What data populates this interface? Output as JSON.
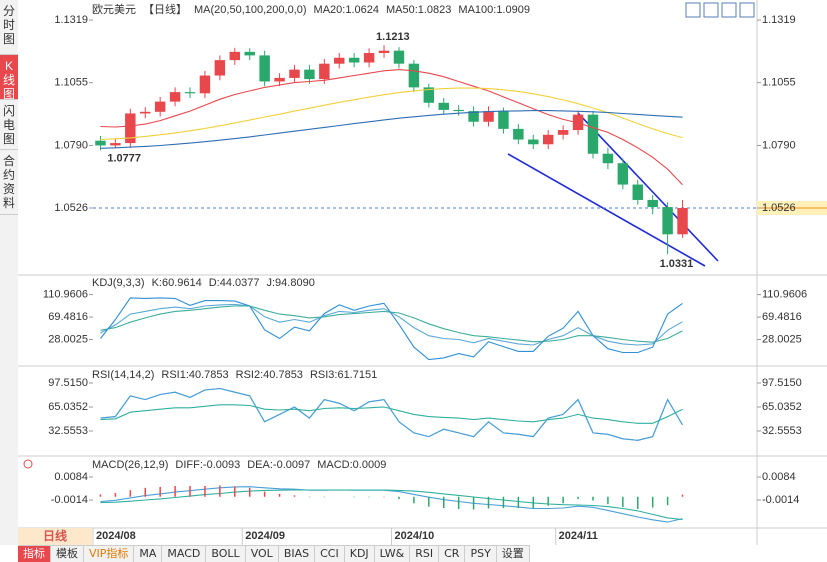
{
  "sidebar": [
    "分时图",
    "K线图",
    "闪电图",
    "合约资料"
  ],
  "period_label": "日线",
  "toolbar": [
    "指标",
    "模板",
    "VIP指标",
    "MA",
    "MACD",
    "BOLL",
    "VOL",
    "BIAS",
    "CCI",
    "KDJ",
    "LW&",
    "RSI",
    "CR",
    "PSY",
    "设置"
  ],
  "chart_data": [
    {
      "type": "candlestick",
      "title": "欧元美元",
      "period": "【日线】",
      "ma_label": "MA(20,50,100,200,0,0)",
      "categories": [
        "2024/08",
        null,
        null,
        null,
        null,
        null,
        null,
        null,
        null,
        null,
        "2024/09",
        null,
        null,
        null,
        null,
        null,
        null,
        null,
        null,
        null,
        "2024/10",
        null,
        null,
        null,
        null,
        null,
        null,
        null,
        null,
        null,
        null,
        "2024/11",
        null,
        null,
        null,
        null,
        null,
        null,
        null,
        null
      ],
      "open": [
        1.081,
        1.079,
        1.08,
        1.0925,
        1.0932,
        1.0975,
        1.1015,
        1.101,
        1.1085,
        1.115,
        1.1185,
        1.117,
        1.106,
        1.1075,
        1.111,
        1.107,
        1.1135,
        1.116,
        1.114,
        1.118,
        1.119,
        1.1135,
        1.1035,
        1.097,
        1.094,
        1.0935,
        1.089,
        1.0935,
        1.086,
        1.0815,
        1.0795,
        1.0835,
        1.0855,
        1.092,
        1.0755,
        1.0715,
        1.0625,
        1.056,
        1.053,
        1.0415
      ],
      "high": [
        1.083,
        1.082,
        1.0945,
        1.0952,
        1.0995,
        1.1035,
        1.1035,
        1.1105,
        1.117,
        1.1202,
        1.12,
        1.119,
        1.1095,
        1.113,
        1.113,
        1.1155,
        1.118,
        1.118,
        1.12,
        1.1213,
        1.1205,
        1.115,
        1.105,
        1.099,
        1.096,
        1.0955,
        1.0955,
        1.095,
        1.088,
        1.0835,
        1.0855,
        1.0875,
        1.0937,
        1.0935,
        1.078,
        1.0735,
        1.0645,
        1.058,
        1.055,
        1.056
      ],
      "low": [
        1.077,
        1.0777,
        1.078,
        1.0905,
        1.0912,
        1.0955,
        1.099,
        1.099,
        1.1065,
        1.113,
        1.115,
        1.104,
        1.104,
        1.1055,
        1.105,
        1.105,
        1.1115,
        1.112,
        1.112,
        1.116,
        1.1115,
        1.1015,
        1.095,
        1.092,
        1.0915,
        1.087,
        1.087,
        1.084,
        1.0795,
        1.0775,
        1.0775,
        1.0815,
        1.0835,
        1.0735,
        1.069,
        1.0605,
        1.054,
        1.05,
        1.0331,
        1.04
      ],
      "close": [
        1.079,
        1.08,
        1.0925,
        1.0932,
        1.0975,
        1.1015,
        1.101,
        1.1085,
        1.115,
        1.1185,
        1.117,
        1.106,
        1.1075,
        1.111,
        1.107,
        1.1135,
        1.116,
        1.114,
        1.118,
        1.119,
        1.1135,
        1.1035,
        1.097,
        1.094,
        1.0935,
        1.089,
        1.0935,
        1.086,
        1.0815,
        1.0795,
        1.0835,
        1.0855,
        1.092,
        1.0755,
        1.0715,
        1.0625,
        1.056,
        1.053,
        1.0415,
        1.0526
      ],
      "up_color": "#e8474c",
      "down_color": "#2aa86c",
      "series": [
        {
          "name": "MA20:1.0624",
          "color": "#e8474c",
          "values": [
            1.087,
            1.0868,
            1.0872,
            1.088,
            1.0895,
            1.0915,
            1.0935,
            1.096,
            1.0985,
            1.1005,
            1.102,
            1.1035,
            1.1045,
            1.1055,
            1.106,
            1.1065,
            1.1075,
            1.1085,
            1.1095,
            1.1105,
            1.111,
            1.1105,
            1.1095,
            1.108,
            1.106,
            1.104,
            1.102,
            1.0995,
            1.097,
            1.0945,
            1.092,
            1.09,
            1.0885,
            1.0865,
            1.0845,
            1.0815,
            1.078,
            1.074,
            1.069,
            1.0624
          ]
        },
        {
          "name": "MA50:1.0823",
          "color": "#f2d13a",
          "values": [
            1.0815,
            1.0818,
            1.0822,
            1.0828,
            1.0835,
            1.0843,
            1.0852,
            1.0862,
            1.0873,
            1.0885,
            1.0897,
            1.091,
            1.0922,
            1.0935,
            1.0947,
            1.096,
            1.0972,
            1.0983,
            1.0994,
            1.1004,
            1.1013,
            1.102,
            1.1026,
            1.103,
            1.1032,
            1.1032,
            1.103,
            1.1025,
            1.1018,
            1.1008,
            1.0996,
            1.0982,
            1.0966,
            1.0948,
            1.0928,
            1.0906,
            1.0882,
            1.086,
            1.084,
            1.0823
          ]
        },
        {
          "name": "MA100:1.0909",
          "color": "#2f6db5",
          "values": [
            1.0778,
            1.078,
            1.0783,
            1.0786,
            1.079,
            1.0795,
            1.08,
            1.0806,
            1.0812,
            1.0819,
            1.0826,
            1.0834,
            1.0842,
            1.085,
            1.0858,
            1.0866,
            1.0874,
            1.0882,
            1.089,
            1.0898,
            1.0905,
            1.0911,
            1.0917,
            1.0922,
            1.0926,
            1.093,
            1.0933,
            1.0935,
            1.0936,
            1.0937,
            1.0937,
            1.0936,
            1.0934,
            1.0932,
            1.0929,
            1.0925,
            1.0921,
            1.0917,
            1.0913,
            1.0909
          ]
        }
      ],
      "annotations": [
        {
          "index": 19,
          "value": 1.1213,
          "label": "1.1213",
          "color": "#e8474c"
        },
        {
          "index": 1,
          "value": 1.0777,
          "label": "1.0777",
          "color": "#2aa86c"
        },
        {
          "index": 38,
          "value": 1.0331,
          "label": "1.0331",
          "color": "#2aa86c"
        }
      ],
      "last_price": 1.0526,
      "ylim": [
        1.0256,
        1.137
      ],
      "yticks": [
        1.1319,
        1.1055,
        {
          "value": 1.079,
          "label": "1.0790"
        },
        1.0526
      ]
    },
    {
      "type": "line",
      "title": "KDJ(9,3,3)",
      "series": [
        {
          "name": "K:60.9614",
          "color": "#5aa9d6",
          "values": [
            40,
            55,
            75,
            80,
            85,
            88,
            85,
            90,
            92,
            93,
            90,
            70,
            60,
            65,
            60,
            72,
            80,
            78,
            82,
            85,
            70,
            50,
            35,
            30,
            28,
            22,
            30,
            25,
            20,
            18,
            28,
            35,
            50,
            35,
            25,
            20,
            18,
            20,
            45,
            60.9614
          ]
        },
        {
          "name": "D:44.0377",
          "color": "#3fae9c",
          "values": [
            45,
            50,
            60,
            68,
            75,
            80,
            82,
            85,
            88,
            90,
            90,
            82,
            75,
            72,
            68,
            70,
            74,
            76,
            78,
            80,
            77,
            68,
            57,
            48,
            41,
            35,
            33,
            30,
            27,
            24,
            25,
            28,
            35,
            35,
            32,
            28,
            25,
            23,
            30,
            44.0377
          ]
        },
        {
          "name": "J:94.8090",
          "color": "#2f8fd8",
          "values": [
            30,
            65,
            105,
            104,
            105,
            104,
            91,
            100,
            100,
            99,
            90,
            46,
            30,
            51,
            44,
            76,
            92,
            82,
            90,
            95,
            56,
            14,
            -9,
            -6,
            2,
            -4,
            24,
            15,
            6,
            6,
            34,
            49,
            80,
            35,
            11,
            4,
            4,
            14,
            75,
            94.809
          ]
        }
      ],
      "ylim": [
        -13.5,
        138
      ],
      "yticks": [
        110.9606,
        69.4816,
        28.0025
      ]
    },
    {
      "type": "line",
      "title": "RSI(14,14,2)",
      "series": [
        {
          "name": "RSI1:40.7853",
          "color": "#4a9fd8",
          "values": [
            50,
            52,
            80,
            75,
            82,
            85,
            78,
            88,
            90,
            85,
            80,
            45,
            55,
            65,
            50,
            75,
            70,
            60,
            72,
            75,
            45,
            30,
            25,
            35,
            30,
            25,
            45,
            30,
            28,
            25,
            50,
            55,
            75,
            30,
            28,
            22,
            20,
            25,
            75,
            40.7853
          ]
        },
        {
          "name": "RSI2:40.7853",
          "color": "#4a9fd8",
          "values": [
            50,
            52,
            80,
            75,
            82,
            85,
            78,
            88,
            90,
            85,
            80,
            45,
            55,
            65,
            50,
            75,
            70,
            60,
            72,
            75,
            45,
            30,
            25,
            35,
            30,
            25,
            45,
            30,
            28,
            25,
            50,
            55,
            75,
            30,
            28,
            22,
            20,
            25,
            75,
            40.7853
          ]
        },
        {
          "name": "RSI3:61.7151",
          "color": "#2fb0a0",
          "values": [
            48,
            49,
            58,
            60,
            62,
            64,
            64,
            66,
            68,
            68,
            67,
            62,
            61,
            62,
            60,
            63,
            64,
            63,
            64,
            65,
            60,
            55,
            52,
            51,
            50,
            48,
            50,
            48,
            46,
            45,
            48,
            50,
            55,
            50,
            48,
            45,
            43,
            43,
            52,
            61.7151
          ]
        }
      ],
      "ylim": [
        4.1,
        112.4
      ],
      "yticks": [
        {
          "value": 97.515,
          "label": "97.5150"
        },
        65.0352,
        32.5553
      ]
    },
    {
      "type": "line",
      "title": "MACD(26,12,9)",
      "series": [
        {
          "name": "DIFF:-0.0093",
          "color": "#4a9fd8",
          "values": [
            -0.002,
            -0.0015,
            -0.0005,
            0.0005,
            0.0012,
            0.002,
            0.0026,
            0.0032,
            0.0038,
            0.0042,
            0.0043,
            0.0038,
            0.0034,
            0.0032,
            0.0028,
            0.0028,
            0.0029,
            0.0028,
            0.0028,
            0.0028,
            0.0022,
            0.001,
            -0.0002,
            -0.0012,
            -0.002,
            -0.0028,
            -0.0033,
            -0.0038,
            -0.0044,
            -0.005,
            -0.005,
            -0.0048,
            -0.004,
            -0.0045,
            -0.0058,
            -0.0072,
            -0.0086,
            -0.0098,
            -0.0108,
            -0.0093
          ]
        },
        {
          "name": "DEA:-0.0097",
          "color": "#2fb0a0",
          "values": [
            -0.0025,
            -0.0023,
            -0.0019,
            -0.0014,
            -0.0009,
            -0.0003,
            0.0003,
            0.0009,
            0.0014,
            0.002,
            0.0024,
            0.0027,
            0.0028,
            0.0029,
            0.0029,
            0.0029,
            0.0029,
            0.0029,
            0.0029,
            0.0029,
            0.0027,
            0.0024,
            0.0019,
            0.0012,
            0.0006,
            -0.0001,
            -0.0008,
            -0.0014,
            -0.002,
            -0.0026,
            -0.0031,
            -0.0034,
            -0.0035,
            -0.0037,
            -0.0042,
            -0.005,
            -0.006,
            -0.0075,
            -0.009,
            -0.0097
          ]
        },
        {
          "name": "MACD:0.0009",
          "color": "#e8474c",
          "negative_color": "#2aa86c",
          "style": "bar",
          "values": [
            0.001,
            0.0016,
            0.0028,
            0.0038,
            0.0042,
            0.0046,
            0.0046,
            0.0046,
            0.0048,
            0.0044,
            0.0038,
            0.0022,
            0.0012,
            0.0006,
            -0.0002,
            -0.0002,
            0,
            -0.0002,
            -0.0002,
            -0.0002,
            -0.001,
            -0.0028,
            -0.0042,
            -0.0048,
            -0.0052,
            -0.0054,
            -0.005,
            -0.0048,
            -0.0048,
            -0.0048,
            -0.0038,
            -0.0028,
            -0.001,
            -0.0016,
            -0.0032,
            -0.0044,
            -0.0052,
            -0.0046,
            -0.0036,
            0.0009
          ]
        }
      ],
      "ylim": [
        -0.0133,
        0.0148
      ],
      "yticks": [
        0.0084,
        -0.0014
      ]
    }
  ]
}
